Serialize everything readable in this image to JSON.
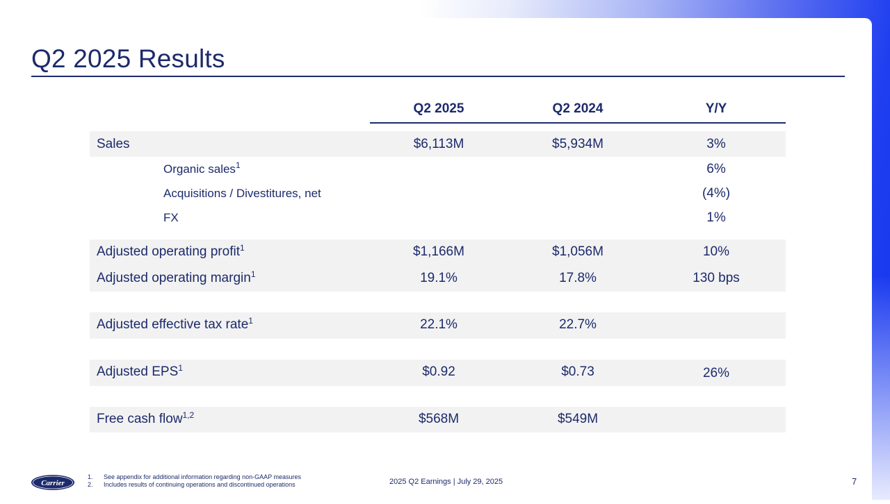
{
  "title": "Q2 2025 Results",
  "columns": [
    "Q2 2025",
    "Q2 2024",
    "Y/Y"
  ],
  "rows": {
    "sales": {
      "label": "Sales",
      "q2_2025": "$6,113M",
      "q2_2024": "$5,934M",
      "yy": "3%"
    },
    "organic": {
      "label": "Organic sales",
      "sup": "1",
      "yy": "6%"
    },
    "acquisitions": {
      "label": "Acquisitions / Divestitures, net",
      "yy": "(4%)"
    },
    "fx": {
      "label": "FX",
      "yy": "1%"
    },
    "op_profit": {
      "label": "Adjusted operating profit",
      "sup": "1",
      "q2_2025": "$1,166M",
      "q2_2024": "$1,056M",
      "yy": "10%"
    },
    "op_margin": {
      "label": "Adjusted operating margin",
      "sup": "1",
      "q2_2025": "19.1%",
      "q2_2024": "17.8%",
      "yy": "130 bps"
    },
    "tax_rate": {
      "label": "Adjusted effective tax rate",
      "sup": "1",
      "q2_2025": "22.1%",
      "q2_2024": "22.7%"
    },
    "eps": {
      "label": "Adjusted EPS",
      "sup": "1",
      "q2_2025": "$0.92",
      "q2_2024": "$0.73",
      "yy": "26%"
    },
    "fcf": {
      "label": "Free cash flow",
      "sup": "1,2",
      "q2_2025": "$568M",
      "q2_2024": "$549M"
    }
  },
  "footnotes": [
    {
      "num": "1.",
      "text": "See appendix for additional information regarding non-GAAP measures"
    },
    {
      "num": "2.",
      "text": "Includes results of continuing operations and discontinued operations"
    }
  ],
  "footer": {
    "event": "2025 Q2 Earnings | July 29, 2025",
    "page": "7"
  },
  "logo": {
    "text": "Carrier"
  },
  "colors": {
    "navy": "#1c2a6b",
    "accent_blue": "#1535ee",
    "band": "#f2f2f2"
  }
}
